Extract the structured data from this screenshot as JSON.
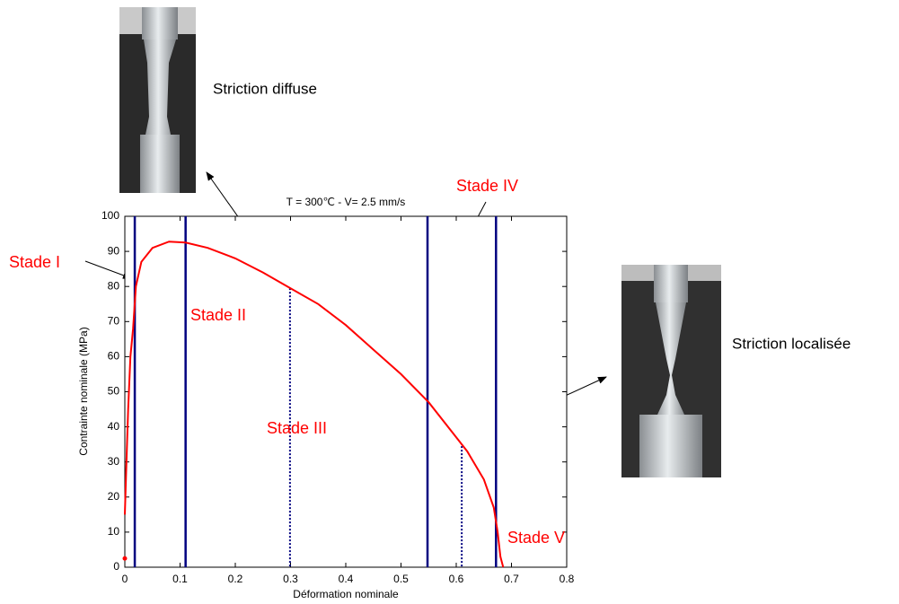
{
  "chart_data": {
    "type": "line",
    "title": "T = 300℃ - V= 2.5 mm/s",
    "x_label": "Déformation nominale",
    "y_label": "Contrainte nominale (MPa)",
    "x": [
      0,
      0.003,
      0.006,
      0.01,
      0.015,
      0.02,
      0.03,
      0.05,
      0.08,
      0.11,
      0.15,
      0.2,
      0.25,
      0.3,
      0.35,
      0.4,
      0.45,
      0.5,
      0.55,
      0.6,
      0.62,
      0.65,
      0.668,
      0.675,
      0.68,
      0.685
    ],
    "values": [
      15,
      30,
      45,
      60,
      68,
      80,
      87,
      91,
      92.8,
      92.5,
      91,
      88,
      84,
      79.5,
      75,
      69,
      62,
      55,
      47,
      37,
      33,
      25,
      17,
      10,
      3,
      0
    ],
    "color": "#ff0000",
    "start_point": {
      "x": 0,
      "y": 2.5
    },
    "stage_lines": [
      0.018,
      0.11,
      0.548,
      0.672
    ],
    "stage_line_color": "#000080",
    "dotted_lines": [
      {
        "x": 0.299,
        "y": 79.5
      },
      {
        "x": 0.61,
        "y": 34.5
      }
    ],
    "xlim": [
      0,
      0.8
    ],
    "ylim": [
      0,
      100
    ],
    "xticks": [
      0,
      0.1,
      0.2,
      0.3,
      0.4,
      0.5,
      0.6,
      0.7,
      0.8
    ],
    "yticks": [
      0,
      10,
      20,
      30,
      40,
      50,
      60,
      70,
      80,
      90,
      100
    ],
    "annotations": [
      "Stade I",
      "Stade II",
      "Stade III",
      "Stade IV",
      "Stade V"
    ],
    "annotation_color": "#ff0000",
    "photo_captions": [
      "Striction diffuse",
      "Striction localisée"
    ]
  }
}
